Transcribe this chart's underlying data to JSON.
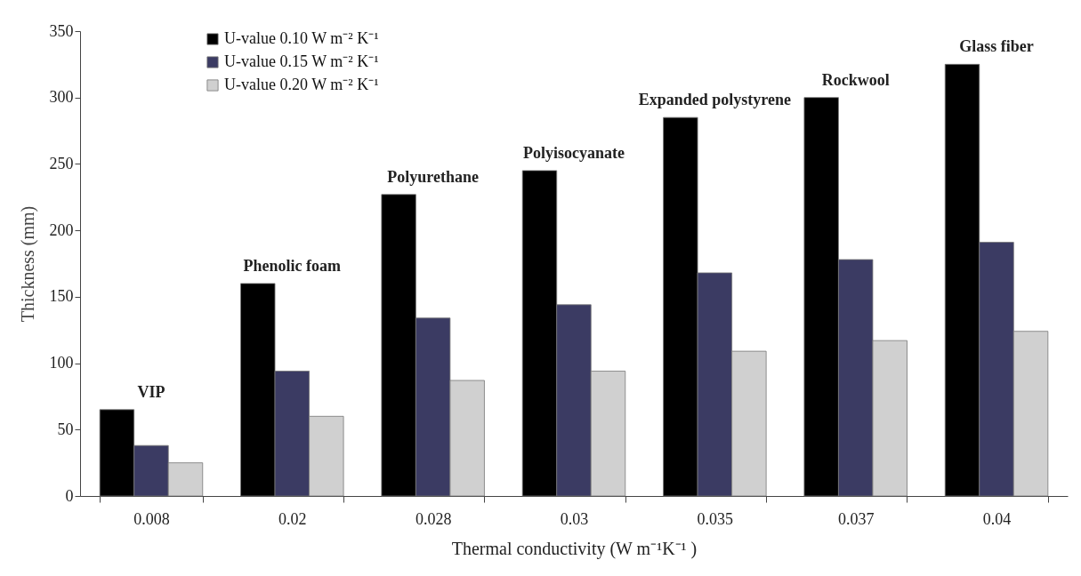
{
  "chart_data": {
    "type": "bar",
    "xlabel": "Thermal conductivity (W m⁻¹K⁻¹ )",
    "ylabel": "Thickness (mm)",
    "categories": [
      "0.008",
      "0.02",
      "0.028",
      "0.03",
      "0.035",
      "0.037",
      "0.04"
    ],
    "series": [
      {
        "name": "U-value 0.10 W m⁻² K⁻¹",
        "color": "#000000",
        "values": [
          65,
          160,
          227,
          245,
          285,
          300,
          325
        ]
      },
      {
        "name": "U-value 0.15 W m⁻² K⁻¹",
        "color": "#3b3b63",
        "values": [
          38,
          94,
          134,
          144,
          168,
          178,
          191
        ]
      },
      {
        "name": "U-value 0.20 W m⁻² K⁻¹",
        "color": "#d0d0d0",
        "values": [
          25,
          60,
          87,
          94,
          109,
          117,
          124
        ]
      }
    ],
    "annotations": [
      "VIP",
      "Phenolic foam",
      "Polyurethane",
      "Polyisocyanate",
      "Expanded polystyrene",
      "Rockwool",
      "Glass fiber"
    ],
    "ylim": [
      0,
      350
    ],
    "yticks": [
      0,
      50,
      100,
      150,
      200,
      250,
      300,
      350
    ],
    "grid": false,
    "legend": "top left"
  }
}
